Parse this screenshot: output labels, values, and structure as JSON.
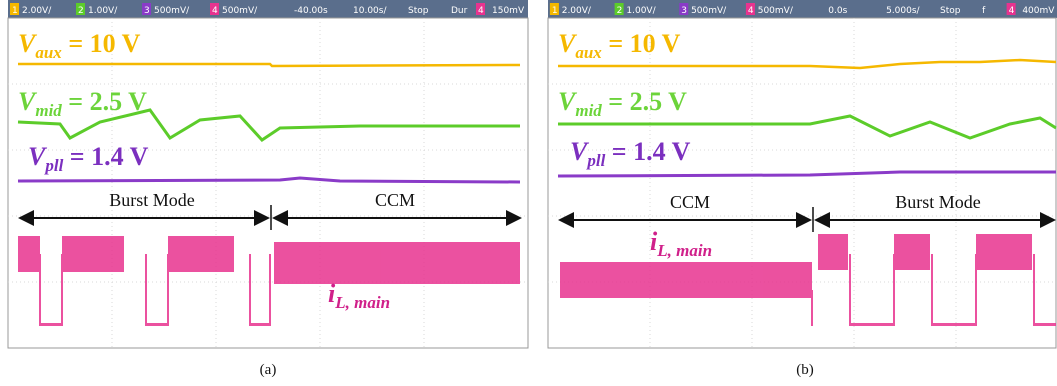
{
  "panels": [
    {
      "header": [
        "1",
        "2.00V/",
        "2",
        "1.00V/",
        "3",
        "500mV/",
        "4",
        "500mV/",
        "-40.00s",
        "10.00s/",
        "Stop",
        "Dur",
        "4",
        "150mV"
      ],
      "labels": [
        {
          "symbol": "V",
          "sub": "aux",
          "rest": " = 10 V"
        },
        {
          "symbol": "V",
          "sub": "mid",
          "rest": " = 2.5 V"
        },
        {
          "symbol": "V",
          "sub": "pll",
          "rest": " = 1.4 V"
        },
        {
          "symbol": "i",
          "sub": "L, main"
        }
      ],
      "modes": [
        "Burst Mode",
        "CCM"
      ],
      "caption": "(a)"
    },
    {
      "header": [
        "1",
        "2.00V/",
        "2",
        "1.00V/",
        "3",
        "500mV/",
        "4",
        "500mV/",
        "0.0s",
        "5.000s/",
        "Stop",
        "f",
        "4",
        "400mV"
      ],
      "labels": [
        {
          "symbol": "V",
          "sub": "aux",
          "rest": " = 10 V"
        },
        {
          "symbol": "V",
          "sub": "mid",
          "rest": " = 2.5 V"
        },
        {
          "symbol": "V",
          "sub": "pll",
          "rest": " = 1.4 V"
        },
        {
          "symbol": "i",
          "sub": "L, main"
        }
      ],
      "modes": [
        "CCM",
        "Burst Mode"
      ],
      "caption": "(b)"
    }
  ]
}
